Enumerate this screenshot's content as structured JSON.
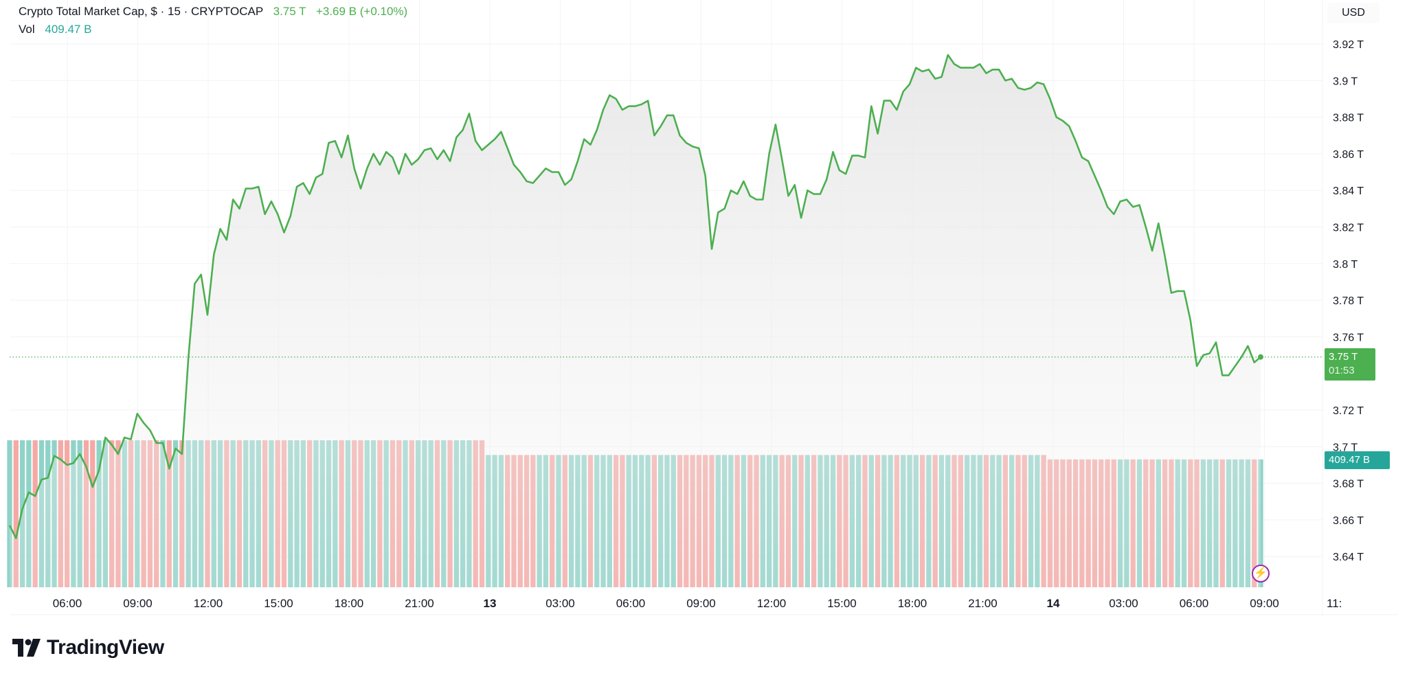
{
  "header": {
    "title": "Crypto Total Market Cap, $ · 15 · CRYPTOCAP",
    "last": "3.75 T",
    "change": "+3.69 B (+0.10%)",
    "vol_label": "Vol",
    "vol_value": "409.47 B"
  },
  "price_axis": {
    "currency": "USD",
    "last_price_tag": "3.75 T",
    "countdown": "01:53",
    "volume_tag": "409.47 B"
  },
  "branding": {
    "logo_text": "TradingView"
  },
  "icons": {
    "replay": "lightning-icon",
    "logo": "tradingview-logo-icon"
  },
  "colors": {
    "line": "#4caf50",
    "up_volume": "#8fd3c8",
    "down_volume": "#f4a9a5",
    "volume_tag": "#26a69a",
    "replay": "#9c27b0"
  },
  "chart_data": {
    "type": "area",
    "interval": "15",
    "ylim": [
      3.625,
      3.93
    ],
    "yticks": [
      "3.92 T",
      "3.9 T",
      "3.88 T",
      "3.86 T",
      "3.84 T",
      "3.82 T",
      "3.8 T",
      "3.78 T",
      "3.76 T",
      "3.72 T",
      "3.7 T",
      "3.68 T",
      "3.66 T",
      "3.64 T"
    ],
    "ytick_values": [
      3.92,
      3.9,
      3.88,
      3.86,
      3.84,
      3.82,
      3.8,
      3.78,
      3.76,
      3.72,
      3.7,
      3.68,
      3.66,
      3.64
    ],
    "xticks": [
      "06:00",
      "09:00",
      "12:00",
      "15:00",
      "18:00",
      "21:00",
      "13",
      "03:00",
      "06:00",
      "09:00",
      "12:00",
      "15:00",
      "18:00",
      "21:00",
      "14",
      "03:00",
      "06:00",
      "09:00",
      "11:"
    ],
    "grid": true,
    "last_value": 3.749,
    "values": [
      3.657,
      3.65,
      3.666,
      3.675,
      3.673,
      3.682,
      3.683,
      3.695,
      3.693,
      3.69,
      3.691,
      3.696,
      3.689,
      3.678,
      3.687,
      3.705,
      3.701,
      3.696,
      3.705,
      3.704,
      3.718,
      3.713,
      3.709,
      3.702,
      3.702,
      3.688,
      3.699,
      3.696,
      3.748,
      3.789,
      3.794,
      3.772,
      3.805,
      3.819,
      3.813,
      3.835,
      3.83,
      3.841,
      3.841,
      3.842,
      3.827,
      3.834,
      3.827,
      3.817,
      3.826,
      3.842,
      3.844,
      3.838,
      3.847,
      3.849,
      3.866,
      3.867,
      3.858,
      3.87,
      3.852,
      3.841,
      3.852,
      3.86,
      3.854,
      3.861,
      3.858,
      3.849,
      3.86,
      3.854,
      3.857,
      3.862,
      3.863,
      3.857,
      3.862,
      3.856,
      3.869,
      3.873,
      3.882,
      3.867,
      3.862,
      3.865,
      3.868,
      3.872,
      3.863,
      3.854,
      3.85,
      3.845,
      3.844,
      3.848,
      3.852,
      3.85,
      3.85,
      3.843,
      3.846,
      3.856,
      3.868,
      3.865,
      3.873,
      3.884,
      3.892,
      3.89,
      3.884,
      3.886,
      3.886,
      3.887,
      3.889,
      3.87,
      3.875,
      3.881,
      3.881,
      3.87,
      3.866,
      3.864,
      3.863,
      3.848,
      3.808,
      3.828,
      3.83,
      3.84,
      3.838,
      3.845,
      3.837,
      3.835,
      3.835,
      3.86,
      3.876,
      3.857,
      3.837,
      3.843,
      3.825,
      3.84,
      3.838,
      3.838,
      3.846,
      3.861,
      3.851,
      3.849,
      3.859,
      3.859,
      3.858,
      3.886,
      3.871,
      3.889,
      3.889,
      3.884,
      3.894,
      3.898,
      3.907,
      3.905,
      3.906,
      3.901,
      3.902,
      3.914,
      3.909,
      3.907,
      3.907,
      3.907,
      3.909,
      3.904,
      3.906,
      3.906,
      3.9,
      3.901,
      3.896,
      3.895,
      3.896,
      3.899,
      3.898,
      3.89,
      3.88,
      3.878,
      3.875,
      3.867,
      3.858,
      3.856,
      3.848,
      3.84,
      3.831,
      3.827,
      3.834,
      3.835,
      3.831,
      3.832,
      3.82,
      3.807,
      3.822,
      3.804,
      3.784,
      3.785,
      3.785,
      3.769,
      3.744,
      3.75,
      3.751,
      3.757,
      3.739,
      3.739,
      3.744,
      3.749,
      3.755,
      3.746,
      3.749
    ],
    "volume_levels": [
      1.0,
      0.9,
      0.87
    ]
  }
}
